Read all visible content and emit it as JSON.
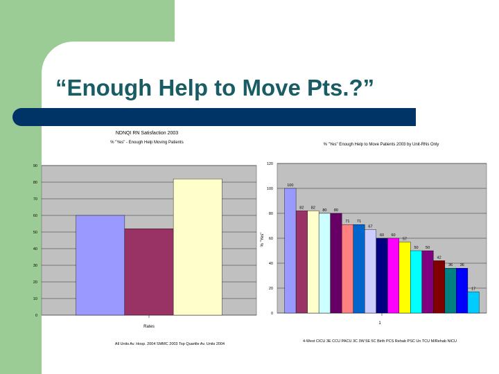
{
  "slide": {
    "title": "“Enough Help to Move Pts.?”",
    "colors": {
      "green": "#9ccc96",
      "navy": "#003366",
      "title_color": "#1a5c63"
    }
  },
  "chart_data": [
    {
      "type": "bar",
      "title": "NDNQI RN Satisfaction 2003",
      "subtitle": "% \"Yes\" - Enough Help Moving Patients",
      "categories": [
        "Rates"
      ],
      "xlabel": "Rates",
      "ylim": [
        0,
        90
      ],
      "yticks": [
        0,
        10,
        20,
        30,
        40,
        50,
        60,
        70,
        80,
        90
      ],
      "grid": true,
      "legend_position": "bottom",
      "series": [
        {
          "name": "All Units Av. Hosp. 2004",
          "color": "#9999ff",
          "values": [
            60
          ]
        },
        {
          "name": "SMMC 2003",
          "color": "#993366",
          "values": [
            52
          ]
        },
        {
          "name": "Top Quartile Av. Units 2004",
          "color": "#ffffcc",
          "values": [
            82
          ]
        }
      ],
      "legend": "All Units Av. Hosp. 2004   SMMC 2003   Top Quartile Av. Units 2004"
    },
    {
      "type": "bar",
      "title": "% \"Yes\" Enough Help to Move Patients 2003 by Unit-RNs Only",
      "categories": [
        "1"
      ],
      "xlabel": "1",
      "ylabel": "% \"Yes\"",
      "ylim": [
        0,
        120
      ],
      "yticks": [
        0,
        20,
        40,
        60,
        80,
        100,
        120
      ],
      "grid": true,
      "legend_position": "bottom",
      "series": [
        {
          "name": "4-West",
          "color": "#9999ff",
          "values": [
            100
          ]
        },
        {
          "name": "CICU",
          "color": "#993366",
          "values": [
            82
          ]
        },
        {
          "name": "3E",
          "color": "#ffffcc",
          "values": [
            82
          ]
        },
        {
          "name": "CCU",
          "color": "#ccffff",
          "values": [
            80
          ]
        },
        {
          "name": "PACU",
          "color": "#660066",
          "values": [
            80
          ]
        },
        {
          "name": "3C",
          "color": "#ff8080",
          "values": [
            71
          ]
        },
        {
          "name": "3W",
          "color": "#0066cc",
          "values": [
            71
          ]
        },
        {
          "name": "5E",
          "color": "#ccccff",
          "values": [
            67
          ]
        },
        {
          "name": "5C",
          "color": "#000080",
          "values": [
            60
          ]
        },
        {
          "name": "Birth",
          "color": "#ff00ff",
          "values": [
            60
          ]
        },
        {
          "name": "PCS",
          "color": "#ffff00",
          "values": [
            57
          ]
        },
        {
          "name": "Rehab",
          "color": "#00ffff",
          "values": [
            50
          ]
        },
        {
          "name": "PSC",
          "color": "#800080",
          "values": [
            50
          ]
        },
        {
          "name": "Un",
          "color": "#800000",
          "values": [
            42
          ]
        },
        {
          "name": "TCU",
          "color": "#008080",
          "values": [
            36
          ]
        },
        {
          "name": "M/Rehab",
          "color": "#0000ff",
          "values": [
            36
          ]
        },
        {
          "name": "NICU",
          "color": "#00ccff",
          "values": [
            17
          ]
        }
      ],
      "data_labels": [
        "100",
        "82",
        "82",
        "80",
        "80",
        "71",
        "71",
        "67",
        "60",
        "60",
        "57",
        "50",
        "50",
        "42",
        "36",
        "36",
        "17"
      ],
      "legend": "4-West CICU 3E CCU PACU 3C 3W 5E 5C Birth PCS Rehab PSC Un TCU M/Rehab NICU"
    }
  ]
}
